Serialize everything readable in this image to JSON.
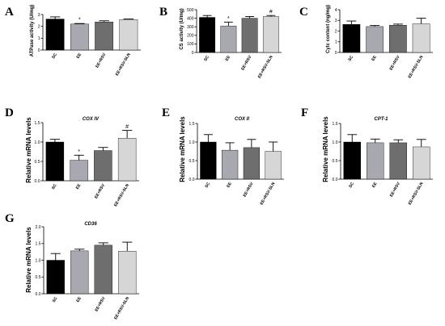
{
  "figure": {
    "colors": {
      "SC": "#000000",
      "EE": "#a8a8b0",
      "EE+RSV": "#6e6e6e",
      "EE+RSV-SLN": "#d6d6d6"
    }
  },
  "chart_data": [
    {
      "panel": "A",
      "type": "bar",
      "title": "",
      "ylabel": "ATPase activity (U/mg)",
      "xlabel": "",
      "categories": [
        "SC",
        "EE",
        "EE+RSV",
        "EE+RSV-SLN"
      ],
      "values": [
        2.62,
        2.2,
        2.37,
        2.57
      ],
      "errors": [
        0.18,
        0.04,
        0.1,
        0.05
      ],
      "sig": [
        "",
        "*",
        "",
        ""
      ],
      "ylim": [
        0,
        3
      ],
      "ticks": [
        0,
        1,
        2,
        3
      ],
      "tick_labels": [
        "0",
        "1",
        "2",
        "3"
      ]
    },
    {
      "panel": "B",
      "type": "bar",
      "title": "",
      "ylabel": "CS activity (U/mg)",
      "xlabel": "",
      "categories": [
        "SC",
        "EE",
        "EE+RSV",
        "EE+RSV-SLN"
      ],
      "values": [
        410,
        310,
        400,
        420
      ],
      "errors": [
        22,
        45,
        20,
        12
      ],
      "sig": [
        "",
        "*",
        "",
        "#"
      ],
      "ylim": [
        0,
        500
      ],
      "ticks": [
        0,
        100,
        200,
        300,
        400,
        500
      ],
      "tick_labels": [
        "0",
        "100",
        "200",
        "300",
        "400",
        "500"
      ]
    },
    {
      "panel": "C",
      "type": "bar",
      "title": "",
      "ylabel": "Cytc content (ng/mg)",
      "xlabel": "",
      "categories": [
        "SC",
        "EE",
        "EE+RSV",
        "EE+RSV-SLN"
      ],
      "values": [
        2.62,
        2.42,
        2.55,
        2.68
      ],
      "errors": [
        0.32,
        0.1,
        0.1,
        0.52
      ],
      "sig": [
        "",
        "",
        "",
        ""
      ],
      "ylim": [
        0,
        4
      ],
      "ticks": [
        0,
        1,
        2,
        3,
        4
      ],
      "tick_labels": [
        "0",
        "1",
        "2",
        "3",
        "4"
      ]
    },
    {
      "panel": "D",
      "type": "bar",
      "title": "COX IV",
      "ylabel": "Relative mRNA levels",
      "xlabel": "",
      "categories": [
        "SC",
        "EE",
        "EE+RSV",
        "EE+RSV-SLN"
      ],
      "values": [
        1.0,
        0.53,
        0.78,
        1.1
      ],
      "errors": [
        0.07,
        0.13,
        0.08,
        0.2
      ],
      "sig": [
        "",
        "*",
        "",
        "#"
      ],
      "ylim": [
        0,
        1.5
      ],
      "ticks": [
        0,
        0.5,
        1.0,
        1.5
      ],
      "tick_labels": [
        "0.0",
        "0.5",
        "1.0",
        "1.5"
      ]
    },
    {
      "panel": "E",
      "type": "bar",
      "title": "COX II",
      "ylabel": "Relative mRNA levels",
      "xlabel": "",
      "categories": [
        "SC",
        "EE",
        "EE+RSV",
        "EE+RSV-SLN"
      ],
      "values": [
        1.0,
        0.78,
        0.85,
        0.75
      ],
      "errors": [
        0.2,
        0.2,
        0.22,
        0.25
      ],
      "sig": [
        "",
        "",
        "",
        ""
      ],
      "ylim": [
        0,
        1.5
      ],
      "ticks": [
        0,
        0.5,
        1.0,
        1.5
      ],
      "tick_labels": [
        "0.0",
        "0.5",
        "1.0",
        "1.5"
      ]
    },
    {
      "panel": "F",
      "type": "bar",
      "title": "CPT-1",
      "ylabel": "Relative mRNA levels",
      "xlabel": "",
      "categories": [
        "SC",
        "EE",
        "EE+RSV",
        "EE+RSV-SLN"
      ],
      "values": [
        1.0,
        0.98,
        0.98,
        0.87
      ],
      "errors": [
        0.2,
        0.1,
        0.08,
        0.2
      ],
      "sig": [
        "",
        "",
        "",
        ""
      ],
      "ylim": [
        0,
        1.5
      ],
      "ticks": [
        0,
        0.5,
        1.0,
        1.5
      ],
      "tick_labels": [
        "0.0",
        "0.5",
        "1.0",
        "1.5"
      ]
    },
    {
      "panel": "G",
      "type": "bar",
      "title": "CD36",
      "ylabel": "Relative mRNA levels",
      "xlabel": "",
      "categories": [
        "SC",
        "EE",
        "EE+RSV",
        "EE+RSV-SLN"
      ],
      "values": [
        1.0,
        1.28,
        1.45,
        1.27
      ],
      "errors": [
        0.2,
        0.05,
        0.07,
        0.27
      ],
      "sig": [
        "",
        "",
        "",
        ""
      ],
      "ylim": [
        0,
        2
      ],
      "ticks": [
        0,
        0.5,
        1.0,
        1.5,
        2.0
      ],
      "tick_labels": [
        "0.0",
        "0.5",
        "1.0",
        "1.5",
        "2.0"
      ]
    }
  ]
}
